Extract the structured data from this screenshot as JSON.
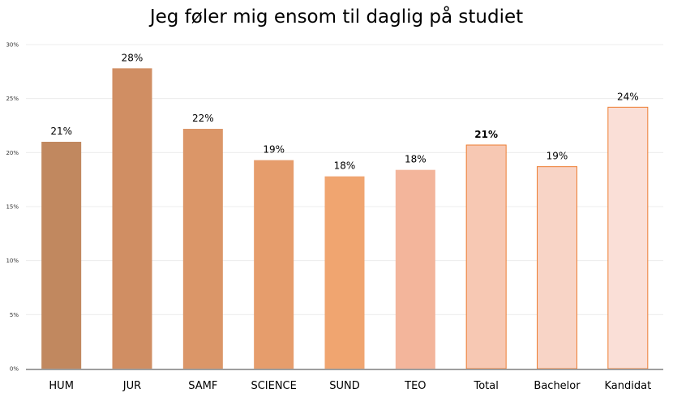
{
  "chart_data": {
    "type": "bar",
    "title": "Jeg føler mig ensom til daglig på studiet",
    "xlabel": "",
    "ylabel": "",
    "ylim": [
      0,
      30
    ],
    "y_ticks": [
      "0%",
      "5%",
      "10%",
      "15%",
      "20%",
      "25%",
      "30%"
    ],
    "y_tick_values": [
      0,
      5,
      10,
      15,
      20,
      25,
      30
    ],
    "grid": true,
    "categories": [
      "HUM",
      "JUR",
      "SAMF",
      "SCIENCE",
      "SUND",
      "TEO",
      "Total",
      "Bachelor",
      "Kandidat"
    ],
    "values": [
      21,
      28,
      22,
      19,
      18,
      18,
      21,
      19,
      24
    ],
    "plotted_values": [
      21.0,
      27.8,
      22.2,
      19.3,
      17.8,
      18.4,
      20.7,
      18.7,
      24.2
    ],
    "data_labels": [
      "21%",
      "28%",
      "22%",
      "19%",
      "18%",
      "18%",
      "21%",
      "19%",
      "24%"
    ],
    "bold_labels": [
      false,
      false,
      false,
      false,
      false,
      false,
      true,
      false,
      false
    ],
    "colors": [
      "#c1885f",
      "#d08e63",
      "#db9668",
      "#e69d6c",
      "#f0a570",
      "#f3b59b",
      "#f7c8b3",
      "#f8d4c6",
      "#fadfd7"
    ],
    "outline_colors": [
      "none",
      "none",
      "none",
      "none",
      "none",
      "none",
      "#ed7d31",
      "#ed7d31",
      "#ed7d31"
    ]
  }
}
